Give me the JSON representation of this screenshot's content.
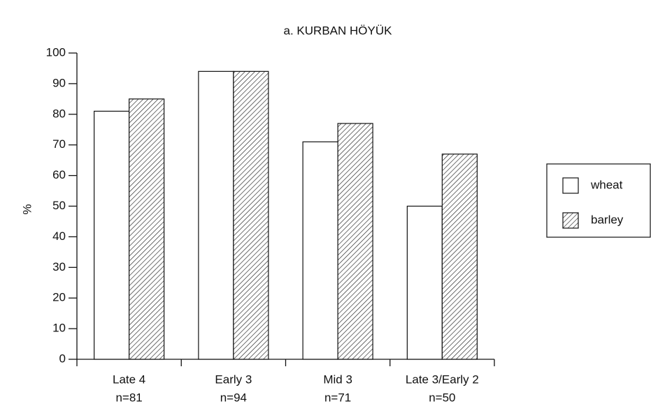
{
  "chart_data": {
    "type": "bar",
    "title": "a. KURBAN HÖYÜK",
    "ylabel": "%",
    "categories": [
      "Late 4",
      "Early 3",
      "Mid 3",
      "Late 3/Early 2"
    ],
    "category_sublabels": [
      "n=81",
      "n=94",
      "n=71",
      "n=50"
    ],
    "series": [
      {
        "name": "wheat",
        "color": "#ffffff",
        "hatch": false,
        "values": [
          81,
          94,
          71,
          50
        ]
      },
      {
        "name": "barley",
        "color": "#222222",
        "hatch": true,
        "values": [
          85,
          94,
          77,
          67
        ]
      }
    ],
    "ylim": [
      0,
      100
    ],
    "yticks": [
      0,
      10,
      20,
      30,
      40,
      50,
      60,
      70,
      80,
      90,
      100
    ],
    "grid": false,
    "legend": "right"
  }
}
